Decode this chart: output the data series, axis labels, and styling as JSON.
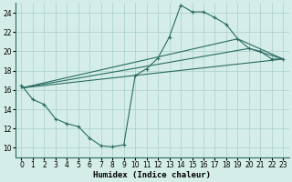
{
  "xlabel": "Humidex (Indice chaleur)",
  "bg_color": "#d4ede8",
  "grid_color": "#a8cfc8",
  "line_color": "#2a6b62",
  "xlim": [
    -0.5,
    23.5
  ],
  "ylim": [
    9,
    25
  ],
  "xticks": [
    0,
    1,
    2,
    3,
    4,
    5,
    6,
    7,
    8,
    9,
    10,
    11,
    12,
    13,
    14,
    15,
    16,
    17,
    18,
    19,
    20,
    21,
    22,
    23
  ],
  "yticks": [
    10,
    12,
    14,
    16,
    18,
    20,
    22,
    24
  ],
  "series": [
    {
      "x": [
        0,
        1,
        2,
        3,
        4,
        5,
        6,
        7,
        8,
        9,
        10,
        11,
        12,
        13,
        14,
        15,
        16,
        17,
        18,
        19,
        20,
        21,
        22,
        23
      ],
      "y": [
        16.5,
        15.0,
        14.5,
        13.0,
        12.5,
        12.2,
        11.0,
        10.2,
        10.1,
        10.3,
        17.5,
        18.2,
        19.3,
        21.5,
        24.8,
        24.1,
        24.1,
        23.5,
        22.8,
        21.3,
        20.3,
        20.0,
        19.2,
        19.2
      ],
      "has_marker": true
    },
    {
      "x": [
        0,
        23
      ],
      "y": [
        16.2,
        19.2
      ],
      "has_marker": false
    },
    {
      "x": [
        0,
        20,
        23
      ],
      "y": [
        16.2,
        20.3,
        19.2
      ],
      "has_marker": false
    },
    {
      "x": [
        0,
        21,
        23
      ],
      "y": [
        16.2,
        21.3,
        19.2
      ],
      "has_marker": false
    }
  ]
}
